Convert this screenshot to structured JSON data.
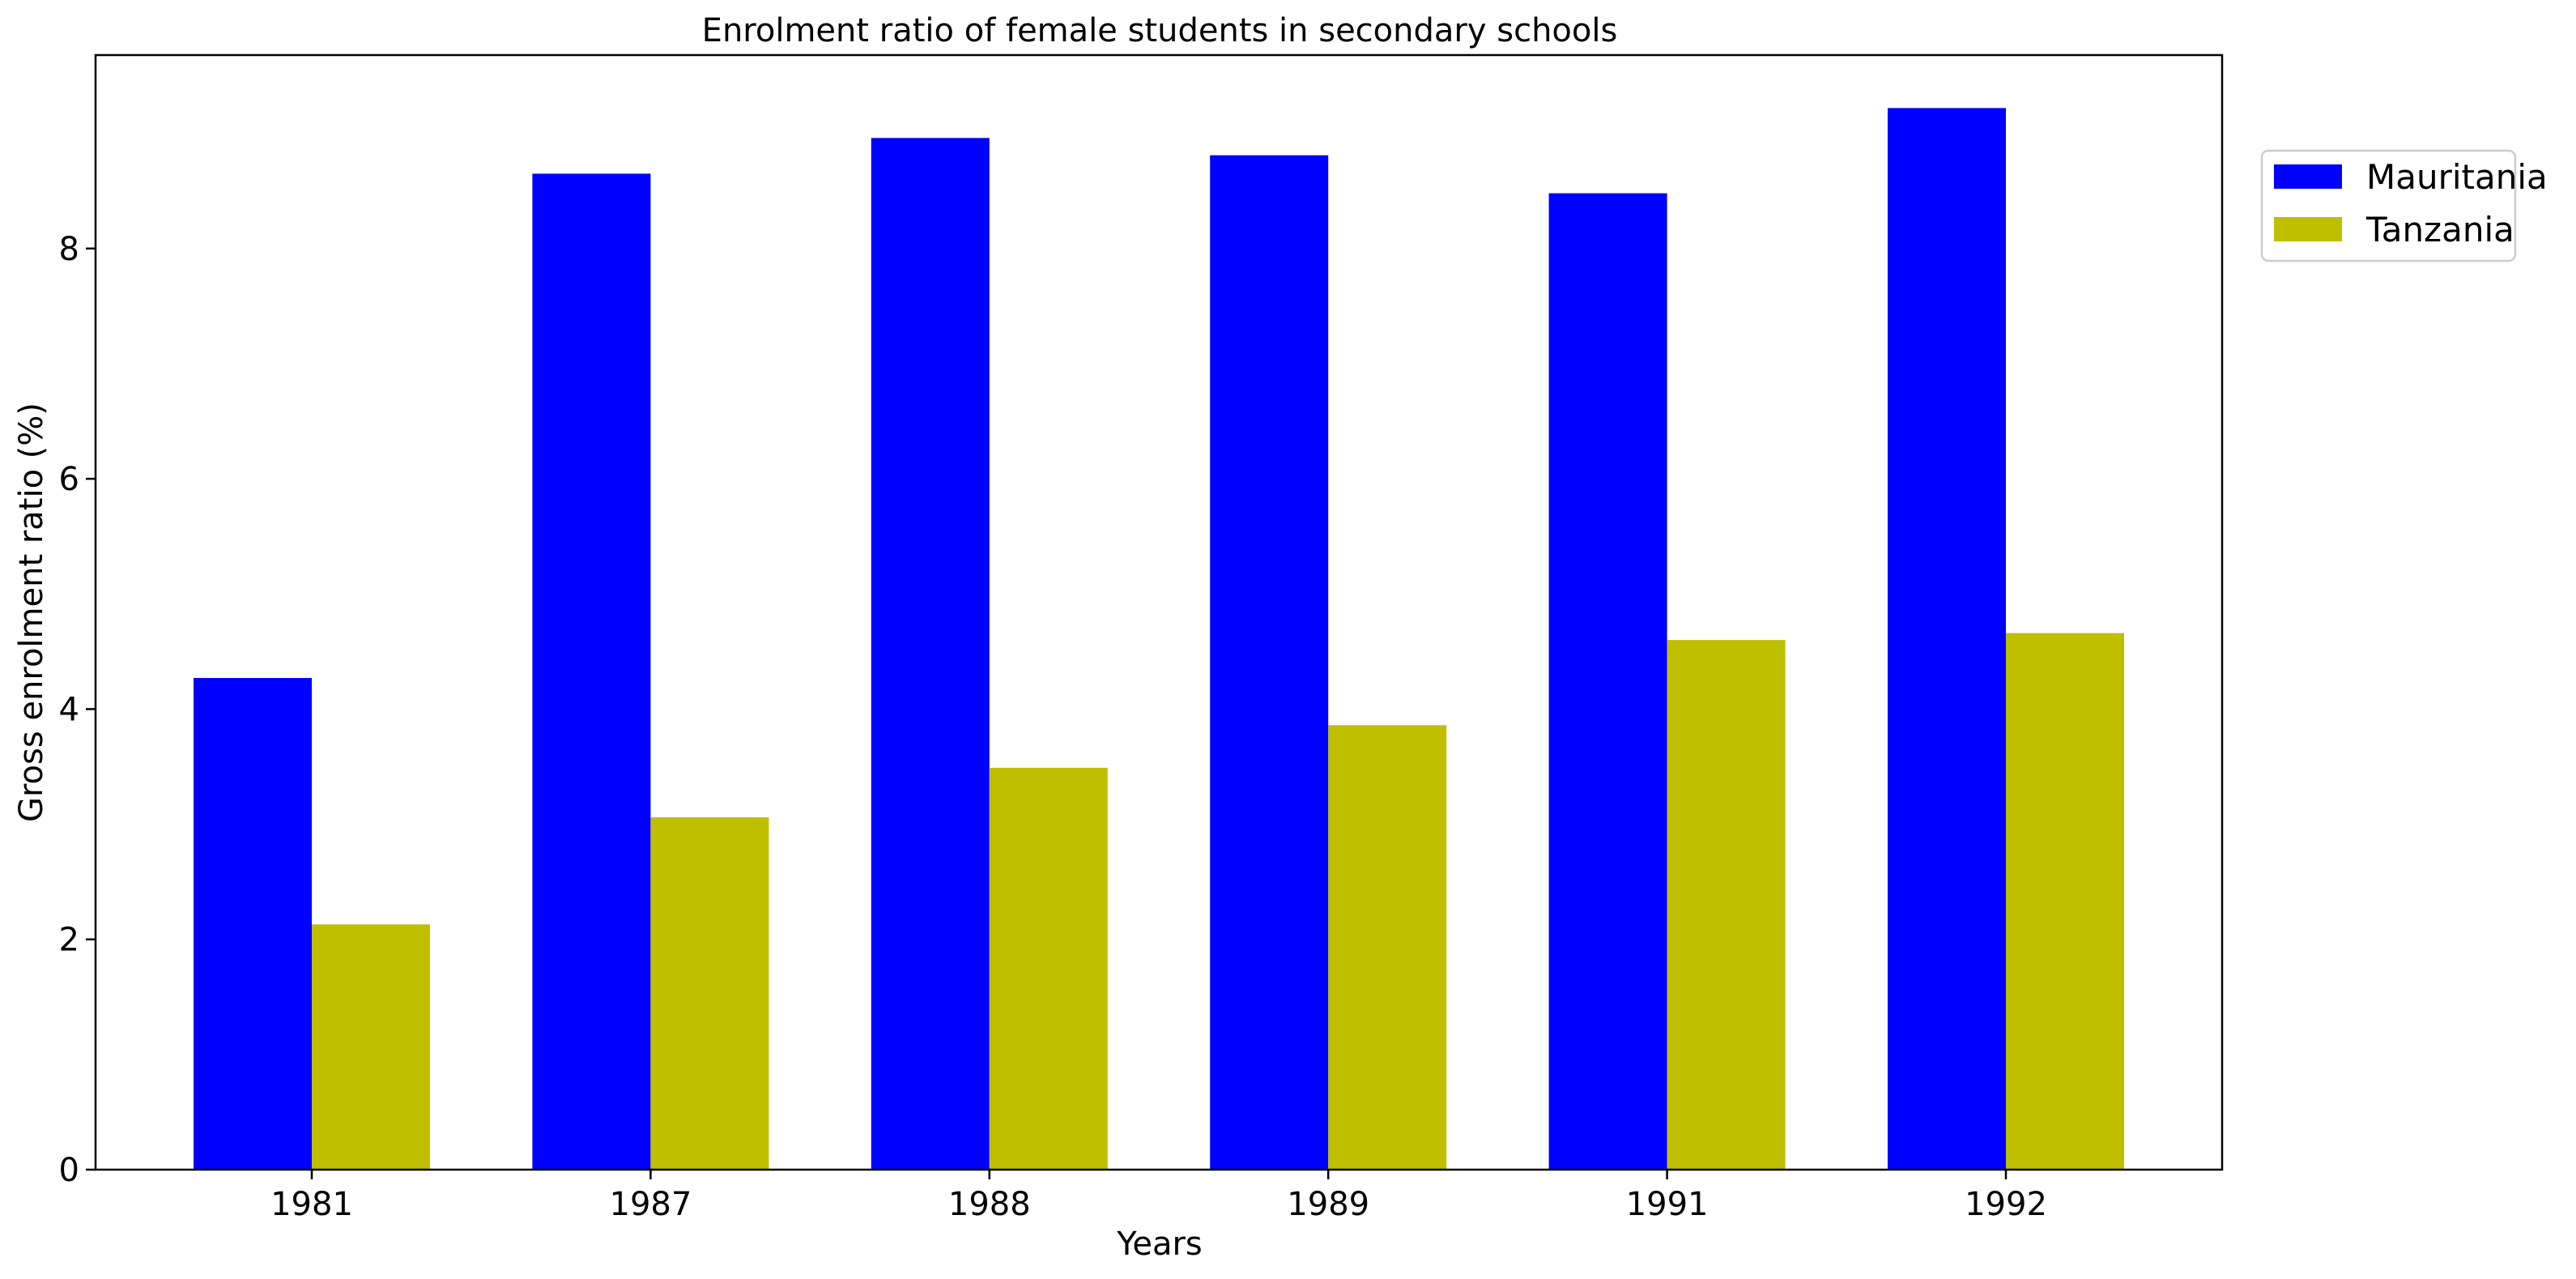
{
  "chart_data": {
    "type": "bar",
    "title": "Enrolment ratio of female students in secondary schools",
    "xlabel": "Years",
    "ylabel": "Gross enrolment ratio (%)",
    "categories": [
      "1981",
      "1987",
      "1988",
      "1989",
      "1991",
      "1992"
    ],
    "series": [
      {
        "name": "Mauritania",
        "color": "#0000ff",
        "values": [
          4.27,
          8.65,
          8.96,
          8.81,
          8.48,
          9.22
        ]
      },
      {
        "name": "Tanzania",
        "color": "#bfbf00",
        "values": [
          2.13,
          3.06,
          3.49,
          3.86,
          4.6,
          4.66
        ]
      }
    ],
    "ylim": [
      0,
      9.68
    ],
    "yticks": [
      "0",
      "2",
      "4",
      "6",
      "8"
    ],
    "grid": false,
    "legend": "upper right, outside plot"
  }
}
